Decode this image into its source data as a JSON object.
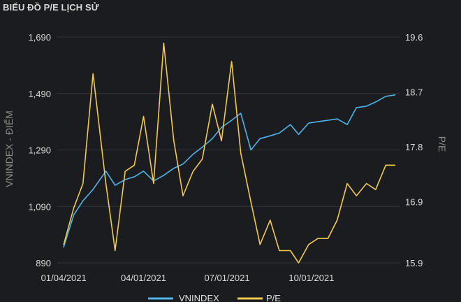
{
  "chart_data": {
    "type": "line",
    "title": "BIỂU ĐỒ P/E LỊCH SỬ",
    "ylabel_left": "VNINDEX - ĐIỂM",
    "ylabel_right": "P/E",
    "ylim_left": [
      890,
      1690
    ],
    "ylim_right": [
      15.9,
      19.6
    ],
    "yticks_left": [
      "890",
      "1,090",
      "1,290",
      "1,490",
      "1,690"
    ],
    "yticks_right": [
      "15.9",
      "16.9",
      "17.8",
      "18.7",
      "19.6"
    ],
    "xticks": [
      "01/04/2021",
      "04/01/2021",
      "07/01/2021",
      "10/01/2021"
    ],
    "x_dates": [
      "2021-01-04",
      "2021-01-15",
      "2021-01-25",
      "2021-02-05",
      "2021-02-19",
      "2021-03-01",
      "2021-03-12",
      "2021-03-22",
      "2021-04-01",
      "2021-04-12",
      "2021-04-23",
      "2021-05-04",
      "2021-05-14",
      "2021-05-25",
      "2021-06-04",
      "2021-06-15",
      "2021-06-25",
      "2021-07-06",
      "2021-07-16",
      "2021-07-27",
      "2021-08-06",
      "2021-08-17",
      "2021-08-27",
      "2021-09-08",
      "2021-09-17",
      "2021-09-28",
      "2021-10-08",
      "2021-10-19",
      "2021-10-29",
      "2021-11-09",
      "2021-11-19",
      "2021-11-30",
      "2021-12-10",
      "2021-12-21",
      "2021-12-31"
    ],
    "series": [
      {
        "name": "VNINDEX",
        "color": "#4fb3e8",
        "axis": "left",
        "values": [
          946,
          1060,
          1110,
          1150,
          1215,
          1165,
          1185,
          1195,
          1215,
          1180,
          1200,
          1225,
          1240,
          1275,
          1300,
          1330,
          1370,
          1395,
          1420,
          1290,
          1330,
          1340,
          1350,
          1380,
          1345,
          1385,
          1390,
          1395,
          1400,
          1380,
          1440,
          1445,
          1460,
          1480,
          1485
        ]
      },
      {
        "name": "P/E",
        "color": "#f2c94c",
        "axis": "right",
        "values": [
          16.2,
          16.8,
          17.2,
          19.0,
          17.2,
          16.1,
          17.4,
          17.5,
          18.3,
          17.2,
          19.5,
          17.9,
          17.0,
          17.4,
          17.6,
          18.5,
          17.9,
          19.2,
          17.7,
          16.9,
          16.2,
          16.6,
          16.1,
          16.1,
          15.9,
          16.2,
          16.3,
          16.3,
          16.6,
          17.2,
          17.0,
          17.2,
          17.1,
          17.5,
          17.5
        ]
      }
    ],
    "legend": [
      "VNINDEX",
      "P/E"
    ],
    "legend_position": "bottom",
    "grid": true
  }
}
